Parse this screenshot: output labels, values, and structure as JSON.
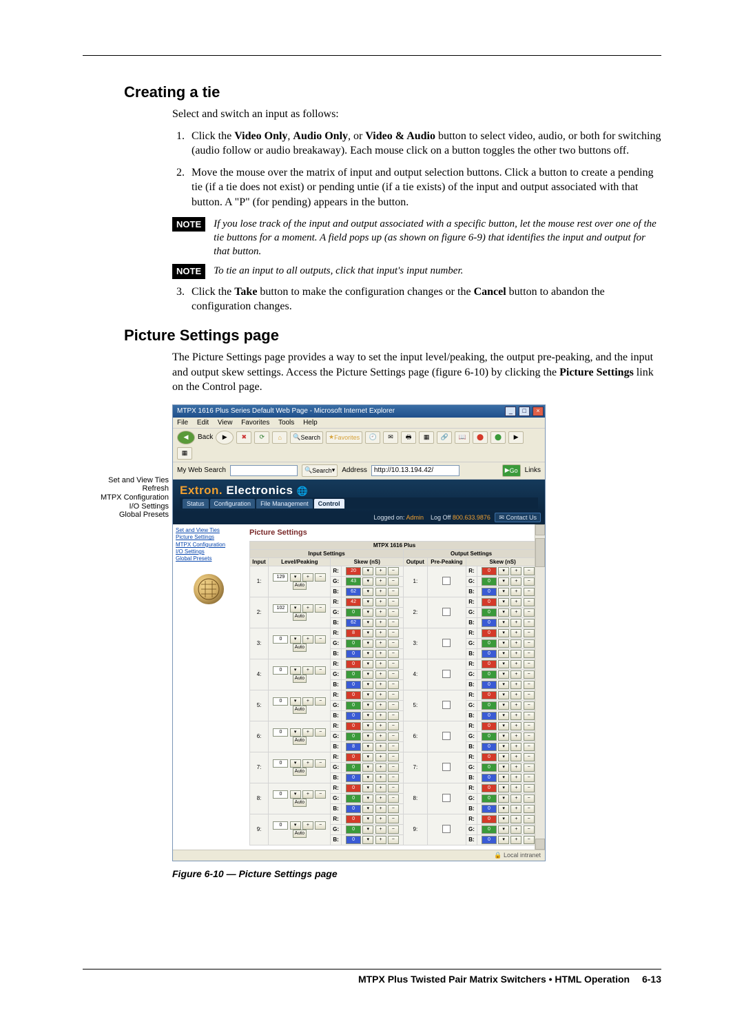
{
  "section1": {
    "title": "Creating a tie",
    "intro": "Select and switch an input as follows:",
    "step1_a": "Click the ",
    "step1_b1": "Video Only",
    "step1_b2": ", ",
    "step1_b3": "Audio Only",
    "step1_b4": ", or ",
    "step1_b5": "Video & Audio",
    "step1_c": " button to select video, audio, or both for switching (audio follow or audio breakaway).  Each mouse click on a button toggles the other two buttons off.",
    "step2": "Move the mouse over the matrix of input and output selection buttons.  Click a button to create a pending tie (if a tie does not exist) or pending untie (if a tie exists) of the input and output associated with that button.  A \"P\" (for pending) appears in the button.",
    "note1_label": "NOTE",
    "note1": "If you lose track of the input and output associated with a specific button, let the mouse rest over one of the tie buttons for a moment.  A field pops up (as shown on figure 6-9) that identifies the input and output for that button.",
    "note2_label": "NOTE",
    "note2": "To tie an input to all outputs, click that input's input number.",
    "step3_a": "Click the ",
    "step3_b1": "Take",
    "step3_b2": " button to make the configuration changes or the ",
    "step3_b3": "Cancel",
    "step3_c": " button to abandon the configuration changes."
  },
  "section2": {
    "title": "Picture Settings page",
    "para_a": "The Picture Settings page provides a way to set the input level/peaking, the output pre-peaking, and the input and output skew settings.  Access the Picture Settings page (figure 6-10) by clicking the ",
    "para_b": "Picture Settings",
    "para_c": " link on the Control page."
  },
  "callouts": {
    "l1": "Set and View Ties",
    "l2": "Refresh",
    "l3": "MTPX Configuration",
    "l4": "I/O Settings",
    "l5": "Global Presets"
  },
  "shot": {
    "wintitle": "MTPX 1616 Plus Series Default Web Page - Microsoft Internet Explorer",
    "menus": [
      "File",
      "Edit",
      "View",
      "Favorites",
      "Tools",
      "Help"
    ],
    "back": "Back",
    "search": "Search",
    "favorites": "Favorites",
    "websearch_lbl": "My Web Search",
    "searchbtn": "Search",
    "addr_lbl": "Address",
    "addr_val": "http://10.13.194.42/",
    "go": "Go",
    "links": "Links",
    "brand1": "Extron",
    "brand2": "Electronics",
    "phone": "800.633.9876",
    "tabs": [
      "Status",
      "Configuration",
      "File Management",
      "Control"
    ],
    "logged": "Logged on:",
    "admin": "Admin",
    "logoff": "Log Off",
    "contact": "Contact Us",
    "left_links": [
      "Set and View Ties",
      "Picture Settings",
      "MTPX Configuration",
      "I/O Settings",
      "Global Presets"
    ],
    "pane_title": "Picture Settings",
    "device": "MTPX 1616 Plus",
    "in_hdr": "Input Settings",
    "out_hdr": "Output Settings",
    "col_in": "Input",
    "col_lvl": "Level/Peaking",
    "col_skew": "Skew (nS)",
    "col_out": "Output",
    "col_pre": "Pre-Peaking",
    "auto": "Auto",
    "rows": [
      {
        "n": "1:",
        "lvl": "129"
      },
      {
        "n": "2:",
        "lvl": "102"
      },
      {
        "n": "3:",
        "lvl": "0"
      },
      {
        "n": "4:",
        "lvl": "0"
      },
      {
        "n": "5:",
        "lvl": "0"
      },
      {
        "n": "6:",
        "lvl": "0"
      },
      {
        "n": "7:",
        "lvl": "0"
      },
      {
        "n": "8:",
        "lvl": "0"
      },
      {
        "n": "9:",
        "lvl": "0"
      }
    ],
    "skew_vals": [
      "20",
      "43",
      "62",
      "42",
      "0",
      "62",
      "8",
      "0",
      "0",
      "0",
      "0",
      "0",
      "0",
      "0",
      "0",
      "0",
      "0",
      "8",
      "0",
      "0",
      "0",
      "0",
      "0",
      "0",
      "0",
      "0",
      "0"
    ],
    "status": "Local intranet"
  },
  "caption": "Figure 6-10 — Picture Settings page",
  "footer": {
    "text": "MTPX Plus Twisted Pair Matrix Switchers • HTML Operation",
    "page": "6-13"
  },
  "style": {
    "page_bg": "#ffffff",
    "note_bg": "#000000",
    "rgb": {
      "r": "#d43a2a",
      "g": "#3a9a3a",
      "b": "#3a5bd4"
    }
  }
}
